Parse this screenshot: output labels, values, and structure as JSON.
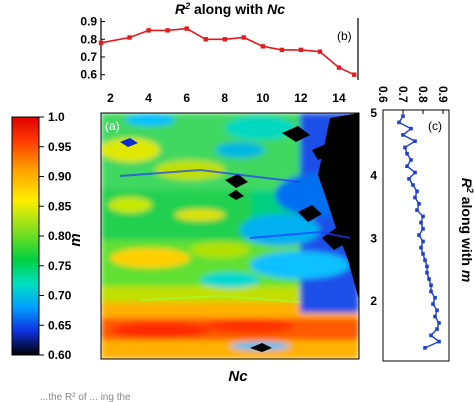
{
  "chart_data": [
    {
      "panel": "(b)",
      "type": "line",
      "title_html": "R² along with Nc",
      "title_parts": {
        "r": "R",
        "sup": "2",
        "rest": " along with ",
        "nc": "Nc"
      },
      "x": [
        1.5,
        3,
        4,
        5,
        6,
        7,
        8,
        9,
        10,
        11,
        12,
        13,
        14,
        14.8
      ],
      "y": [
        0.78,
        0.81,
        0.85,
        0.85,
        0.86,
        0.8,
        0.8,
        0.81,
        0.76,
        0.74,
        0.74,
        0.73,
        0.64,
        0.6
      ],
      "xlim": [
        1.5,
        15
      ],
      "ylim": [
        0.57,
        0.92
      ],
      "xticks": [
        "2",
        "4",
        "6",
        "8",
        "10",
        "12",
        "14"
      ],
      "yticks": [
        "0.9",
        "0.8",
        "0.7",
        "0.6"
      ],
      "color": "#e41a1c"
    },
    {
      "panel": "(a)",
      "type": "heatmap",
      "xlabel": "Nc",
      "ylabel": "m",
      "yticks": [
        "2",
        "3",
        "4",
        "5"
      ],
      "colorbar_ticks": [
        "1.0",
        "0.95",
        "0.90",
        "0.85",
        "0.80",
        "0.75",
        "0.70",
        "0.65",
        "0.60"
      ],
      "value_range": [
        0.6,
        1.0
      ]
    },
    {
      "panel": "(c)",
      "type": "line",
      "orientation": "vertical",
      "xlabel_parts": {
        "r": "R",
        "sup": "2",
        "rest": " along with ",
        "m": "m"
      },
      "top_ticks": [
        "0.6",
        "0.7",
        "0.8",
        "0.9"
      ],
      "m": [
        1.25,
        1.35,
        1.45,
        1.55,
        1.65,
        1.75,
        1.85,
        1.95,
        2.05,
        2.15,
        2.25,
        2.35,
        2.45,
        2.55,
        2.65,
        2.75,
        2.85,
        2.95,
        3.05,
        3.15,
        3.25,
        3.35,
        3.45,
        3.55,
        3.65,
        3.75,
        3.85,
        3.95,
        4.05,
        4.15,
        4.25,
        4.35,
        4.45,
        4.55,
        4.65,
        4.75,
        4.85,
        4.95
      ],
      "r2": [
        0.81,
        0.88,
        0.84,
        0.87,
        0.88,
        0.86,
        0.87,
        0.85,
        0.86,
        0.84,
        0.84,
        0.83,
        0.82,
        0.82,
        0.81,
        0.8,
        0.79,
        0.8,
        0.78,
        0.8,
        0.79,
        0.8,
        0.77,
        0.78,
        0.76,
        0.77,
        0.75,
        0.73,
        0.76,
        0.72,
        0.74,
        0.72,
        0.71,
        0.76,
        0.7,
        0.74,
        0.68,
        0.7
      ],
      "xlim": [
        0.6,
        0.93
      ],
      "color": "#1f3fd0"
    }
  ],
  "labels": {
    "panel_a": "(a)",
    "panel_b": "(b)",
    "panel_c": "(c)"
  },
  "caption_fragment": "...the R² of ... ing the"
}
